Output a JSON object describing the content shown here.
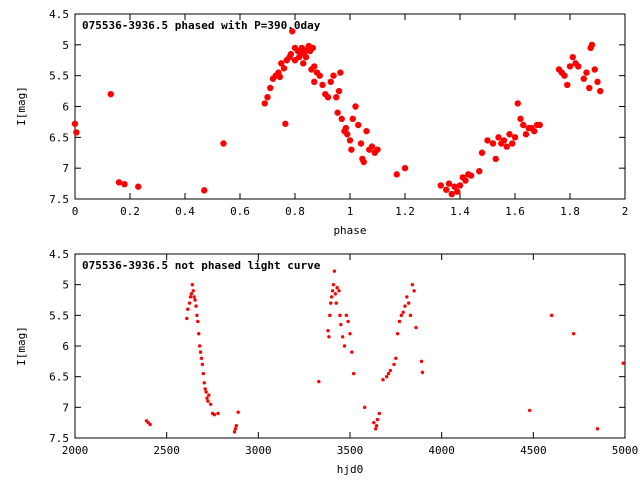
{
  "colors": {
    "point": "#ff0000",
    "axis": "#000000",
    "background": "#ffffff"
  },
  "chart_data": [
    {
      "type": "scatter",
      "title": "075536-3936.5 phased with P=390.0day",
      "xlabel": "phase",
      "ylabel": "I[mag]",
      "xlim": [
        0,
        2
      ],
      "ylim": [
        7.5,
        4.5
      ],
      "y_inverted": true,
      "grid": false,
      "xticks": [
        "0",
        "0.2",
        "0.4",
        "0.6",
        "0.8",
        "1",
        "1.2",
        "1.4",
        "1.6",
        "1.8",
        "2"
      ],
      "yticks": [
        "4.5",
        "5",
        "5.5",
        "6",
        "6.5",
        "7",
        "7.5"
      ],
      "x_tick_values": [
        0,
        0.2,
        0.4,
        0.6,
        0.8,
        1,
        1.2,
        1.4,
        1.6,
        1.8,
        2
      ],
      "y_tick_values": [
        4.5,
        5,
        5.5,
        6,
        6.5,
        7,
        7.5
      ],
      "series": [
        {
          "x": [
            0.0,
            0.005,
            0.13,
            0.16,
            0.18,
            0.23,
            0.47,
            0.54,
            0.69,
            0.7,
            0.71,
            0.72,
            0.73,
            0.74,
            0.745,
            0.75,
            0.76,
            0.765,
            0.77,
            0.78,
            0.785,
            0.79,
            0.8,
            0.8,
            0.81,
            0.815,
            0.82,
            0.825,
            0.83,
            0.835,
            0.84,
            0.845,
            0.85,
            0.855,
            0.86,
            0.865,
            0.87,
            0.87,
            0.88,
            0.89,
            0.9,
            0.91,
            0.92,
            0.93,
            0.94,
            0.95,
            0.955,
            0.96,
            0.965,
            0.97,
            0.98,
            0.985,
            0.99,
            1.0,
            1.005,
            1.01,
            1.02,
            1.03,
            1.04,
            1.045,
            1.05,
            1.06,
            1.07,
            1.08,
            1.09,
            1.1,
            1.17,
            1.2,
            1.33,
            1.35,
            1.36,
            1.37,
            1.38,
            1.39,
            1.4,
            1.41,
            1.42,
            1.43,
            1.44,
            1.47,
            1.48,
            1.5,
            1.52,
            1.53,
            1.54,
            1.55,
            1.56,
            1.57,
            1.58,
            1.59,
            1.6,
            1.61,
            1.62,
            1.63,
            1.64,
            1.65,
            1.66,
            1.67,
            1.68,
            1.69,
            1.76,
            1.77,
            1.78,
            1.79,
            1.8,
            1.81,
            1.82,
            1.83,
            1.85,
            1.86,
            1.87,
            1.875,
            1.88,
            1.89,
            1.9,
            1.91
          ],
          "y": [
            6.28,
            6.42,
            5.8,
            7.23,
            7.26,
            7.3,
            7.36,
            6.6,
            5.95,
            5.85,
            5.7,
            5.55,
            5.5,
            5.45,
            5.52,
            5.3,
            5.38,
            6.28,
            5.25,
            5.2,
            5.15,
            4.78,
            5.05,
            5.25,
            5.1,
            5.2,
            5.15,
            5.05,
            5.3,
            5.12,
            5.2,
            5.08,
            5.02,
            5.1,
            5.4,
            5.05,
            5.35,
            5.6,
            5.45,
            5.5,
            5.65,
            5.8,
            5.85,
            5.6,
            5.5,
            5.85,
            6.1,
            5.75,
            5.45,
            6.2,
            6.4,
            6.35,
            6.45,
            6.55,
            6.7,
            6.2,
            6.0,
            6.3,
            6.6,
            6.85,
            6.9,
            6.4,
            6.7,
            6.65,
            6.75,
            6.7,
            7.1,
            7.0,
            7.28,
            7.35,
            7.25,
            7.42,
            7.3,
            7.38,
            7.28,
            7.15,
            7.2,
            7.1,
            7.12,
            7.05,
            6.75,
            6.55,
            6.6,
            6.85,
            6.5,
            6.6,
            6.55,
            6.65,
            6.45,
            6.6,
            6.5,
            5.95,
            6.2,
            6.3,
            6.45,
            6.35,
            6.35,
            6.4,
            6.3,
            6.3,
            5.4,
            5.45,
            5.5,
            5.65,
            5.35,
            5.2,
            5.3,
            5.35,
            5.55,
            5.45,
            5.7,
            5.05,
            5.0,
            5.4,
            5.6,
            5.75
          ]
        }
      ]
    },
    {
      "type": "scatter",
      "title": "075536-3936.5 not phased light curve",
      "xlabel": "hjd0",
      "ylabel": "I[mag]",
      "xlim": [
        2000,
        5000
      ],
      "ylim": [
        7.5,
        4.5
      ],
      "y_inverted": true,
      "grid": false,
      "xticks": [
        "2000",
        "2500",
        "3000",
        "3500",
        "4000",
        "4500",
        "5000"
      ],
      "yticks": [
        "4.5",
        "5",
        "5.5",
        "6",
        "6.5",
        "7",
        "7.5"
      ],
      "x_tick_values": [
        2000,
        2500,
        3000,
        3500,
        4000,
        4500,
        5000
      ],
      "y_tick_values": [
        4.5,
        5,
        5.5,
        6,
        6.5,
        7,
        7.5
      ],
      "series": [
        {
          "x": [
            2390,
            2400,
            2410,
            2610,
            2615,
            2625,
            2630,
            2635,
            2640,
            2645,
            2650,
            2655,
            2660,
            2665,
            2670,
            2675,
            2680,
            2685,
            2690,
            2695,
            2700,
            2705,
            2710,
            2715,
            2720,
            2725,
            2730,
            2740,
            2750,
            2760,
            2780,
            2870,
            2875,
            2880,
            2890,
            3330,
            3380,
            3385,
            3390,
            3395,
            3400,
            3405,
            3410,
            3415,
            3420,
            3425,
            3430,
            3440,
            3445,
            3450,
            3460,
            3470,
            3480,
            3490,
            3500,
            3510,
            3520,
            3580,
            3630,
            3640,
            3645,
            3650,
            3660,
            3680,
            3700,
            3710,
            3720,
            3740,
            3750,
            3760,
            3770,
            3780,
            3790,
            3800,
            3810,
            3820,
            3830,
            3840,
            3850,
            3860,
            3890,
            3895,
            4480,
            4600,
            4720,
            4850,
            4990
          ],
          "y": [
            7.22,
            7.25,
            7.28,
            5.55,
            5.4,
            5.3,
            5.2,
            5.15,
            5.0,
            5.1,
            5.2,
            5.25,
            5.35,
            5.5,
            5.6,
            5.8,
            6.0,
            6.1,
            6.2,
            6.3,
            6.45,
            6.6,
            6.7,
            6.75,
            6.85,
            6.9,
            6.8,
            6.95,
            7.1,
            7.12,
            7.1,
            7.4,
            7.35,
            7.3,
            7.08,
            6.58,
            5.75,
            5.85,
            5.5,
            5.3,
            5.2,
            5.1,
            5.0,
            4.78,
            5.15,
            5.3,
            5.05,
            5.1,
            5.5,
            5.65,
            5.85,
            6.0,
            5.5,
            5.6,
            5.8,
            6.1,
            6.45,
            7.0,
            7.25,
            7.35,
            7.3,
            7.2,
            7.1,
            6.55,
            6.5,
            6.45,
            6.4,
            6.3,
            6.2,
            5.8,
            5.6,
            5.5,
            5.45,
            5.35,
            5.2,
            5.3,
            5.5,
            5.0,
            5.1,
            5.7,
            6.25,
            6.43,
            7.05,
            5.5,
            5.8,
            7.35,
            6.28
          ]
        }
      ]
    }
  ]
}
